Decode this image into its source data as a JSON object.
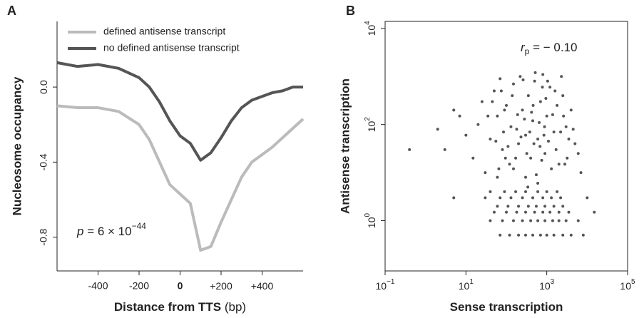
{
  "chart_data": [
    {
      "type": "line",
      "panel": "A",
      "x": [
        -600,
        -500,
        -400,
        -300,
        -200,
        -150,
        -100,
        -50,
        0,
        50,
        100,
        150,
        200,
        250,
        300,
        350,
        400,
        450,
        500,
        550,
        600
      ],
      "series": [
        {
          "name": "defined antisense transcript",
          "color": "#bbbbbb",
          "values": [
            -0.1,
            -0.11,
            -0.11,
            -0.13,
            -0.2,
            -0.28,
            -0.4,
            -0.52,
            -0.57,
            -0.62,
            -0.87,
            -0.85,
            -0.72,
            -0.6,
            -0.48,
            -0.4,
            -0.36,
            -0.32,
            -0.27,
            -0.22,
            -0.17
          ]
        },
        {
          "name": "no defined antisense transcript",
          "color": "#555555",
          "values": [
            0.13,
            0.11,
            0.12,
            0.1,
            0.05,
            0.0,
            -0.08,
            -0.18,
            -0.26,
            -0.3,
            -0.39,
            -0.35,
            -0.27,
            -0.18,
            -0.11,
            -0.07,
            -0.05,
            -0.03,
            -0.02,
            0.0,
            0.0
          ]
        }
      ],
      "xlim": [
        -600,
        600
      ],
      "xticks": [
        -400,
        -200,
        0,
        {
          "value": 200,
          "label": "+200"
        },
        {
          "value": 400,
          "label": "+400"
        }
      ],
      "ylim": [
        -0.98,
        0.35
      ],
      "yticks": [
        {
          "value": 0,
          "label": "0.0"
        },
        -0.4,
        -0.8
      ],
      "xlabel": "Distance from TTS",
      "xlabel_unit": "(bp)",
      "ylabel": "Nucleosome occupancy",
      "annotation": {
        "symbol": "p",
        "text": " = 6 × 10",
        "exponent": "−44"
      },
      "legend": "top-left"
    },
    {
      "type": "scatter",
      "panel": "B",
      "log_x": true,
      "log_y": true,
      "series": [
        {
          "color": "#555555",
          "x": [
            70,
            120,
            200,
            300,
            450,
            700,
            1000,
            1500,
            2500,
            4000,
            40,
            80,
            150,
            250,
            400,
            600,
            900,
            1400,
            2000,
            3000,
            6000,
            50,
            100,
            180,
            300,
            500,
            800,
            1200,
            2000,
            3500,
            60,
            110,
            200,
            350,
            550,
            900,
            1500,
            2500,
            5,
            30,
            70,
            130,
            250,
            450,
            800,
            1300,
            2200,
            40,
            90,
            170,
            300,
            600,
            1000,
            1800,
            0.4,
            3,
            2,
            5,
            7,
            10,
            15,
            20,
            25,
            30,
            40,
            50,
            60,
            70,
            80,
            100,
            120,
            150,
            180,
            200,
            220,
            250,
            300,
            350,
            400,
            450,
            500,
            600,
            700,
            800,
            900,
            1000,
            1200,
            1500,
            1800,
            2000,
            2500,
            3000,
            4000,
            5000,
            7000,
            10000,
            15000,
            8000,
            600,
            300,
            150,
            90,
            110,
            130,
            170,
            230,
            280,
            320,
            380,
            420,
            480,
            550,
            650,
            750,
            850,
            950,
            1100,
            1300,
            1400,
            1700,
            2200,
            2800,
            3500,
            60,
            45,
            35,
            55,
            65,
            85,
            95,
            75,
            140,
            190,
            260,
            340,
            460,
            520,
            680,
            780,
            880,
            1050,
            1600,
            2300,
            2600,
            3200,
            4500,
            6000
          ],
          "values": [
            0.5,
            0.5,
            0.5,
            0.5,
            0.5,
            0.5,
            0.5,
            0.5,
            0.5,
            0.5,
            1,
            1,
            1,
            1,
            1,
            1,
            1,
            1,
            1,
            1,
            1,
            1.5,
            1.5,
            1.5,
            1.5,
            1.5,
            1.5,
            1.5,
            1.5,
            1.5,
            2,
            2,
            2,
            2,
            2,
            2,
            2,
            2,
            3,
            3,
            3,
            3,
            3,
            3,
            3,
            3,
            3,
            4,
            4,
            4,
            4,
            4,
            4,
            4,
            30,
            30,
            80,
            200,
            150,
            60,
            20,
            100,
            300,
            10,
            50,
            500,
            150,
            900,
            30,
            250,
            15,
            700,
            80,
            40,
            1000,
            200,
            60,
            400,
            20,
            120,
            800,
            50,
            300,
            1100,
            25,
            150,
            600,
            70,
            250,
            15,
            400,
            90,
            200,
            40,
            10,
            3,
            1.5,
            0.5,
            6,
            8,
            12,
            200,
            35,
            90,
            20,
            55,
            130,
            25,
            70,
            180,
            40,
            9,
            110,
            18,
            60,
            350,
            45,
            12,
            160,
            30,
            70,
            15,
            50,
            8,
            300,
            150,
            45,
            12,
            70,
            20,
            500,
            400,
            160,
            850,
            5,
            250,
            1200,
            35,
            600,
            90,
            800,
            500,
            1000,
            150,
            20,
            80,
            25
          ]
        }
      ],
      "xlim": [
        0.1,
        100000
      ],
      "xticks": [
        {
          "value": 0.1,
          "label": "10",
          "exponent": "−1"
        },
        {
          "value": 10,
          "label": "10",
          "exponent": "1"
        },
        {
          "value": 1000,
          "label": "10",
          "exponent": "3"
        },
        {
          "value": 100000,
          "label": "10",
          "exponent": "5"
        }
      ],
      "ylim": [
        0.09,
        14000
      ],
      "yticks": [
        {
          "value": 1,
          "label": "10",
          "exponent": "0"
        },
        {
          "value": 100,
          "label": "10",
          "exponent": "2"
        },
        {
          "value": 10000,
          "label": "10",
          "exponent": "4"
        }
      ],
      "xlabel": "Sense transcription",
      "ylabel": "Antisense transcription",
      "annotation": {
        "symbol": "r",
        "subscript": "p",
        "text": " = − 0.10"
      }
    }
  ]
}
